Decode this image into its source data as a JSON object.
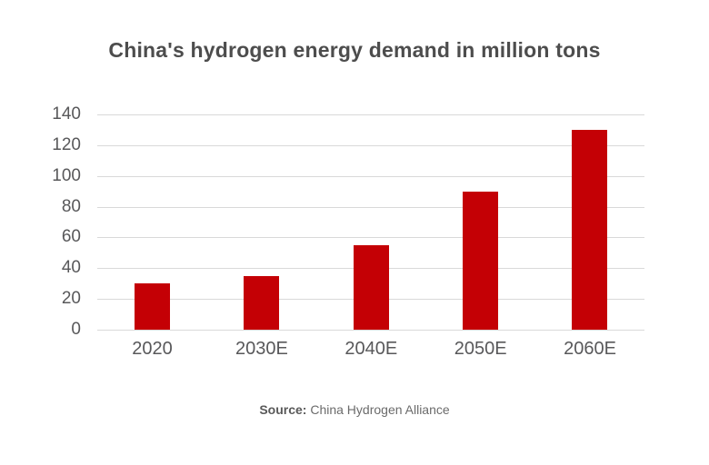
{
  "chart_data": {
    "type": "bar",
    "title": "China's hydrogen energy demand in million tons",
    "categories": [
      "2020",
      "2030E",
      "2040E",
      "2050E",
      "2060E"
    ],
    "values": [
      30,
      35,
      55,
      90,
      130
    ],
    "yticks": [
      0,
      20,
      40,
      60,
      80,
      100,
      120,
      140
    ],
    "ylim": [
      0,
      140
    ],
    "xlabel": "",
    "ylabel": "",
    "grid": "horizontal",
    "legend": "none",
    "bar_color": "#c40005",
    "grid_color": "#d9d9d9",
    "axis_text_color": "#58585a",
    "title_color": "#4d4d4d"
  },
  "source": {
    "label": "Source:",
    "text": " China Hydrogen Alliance"
  }
}
